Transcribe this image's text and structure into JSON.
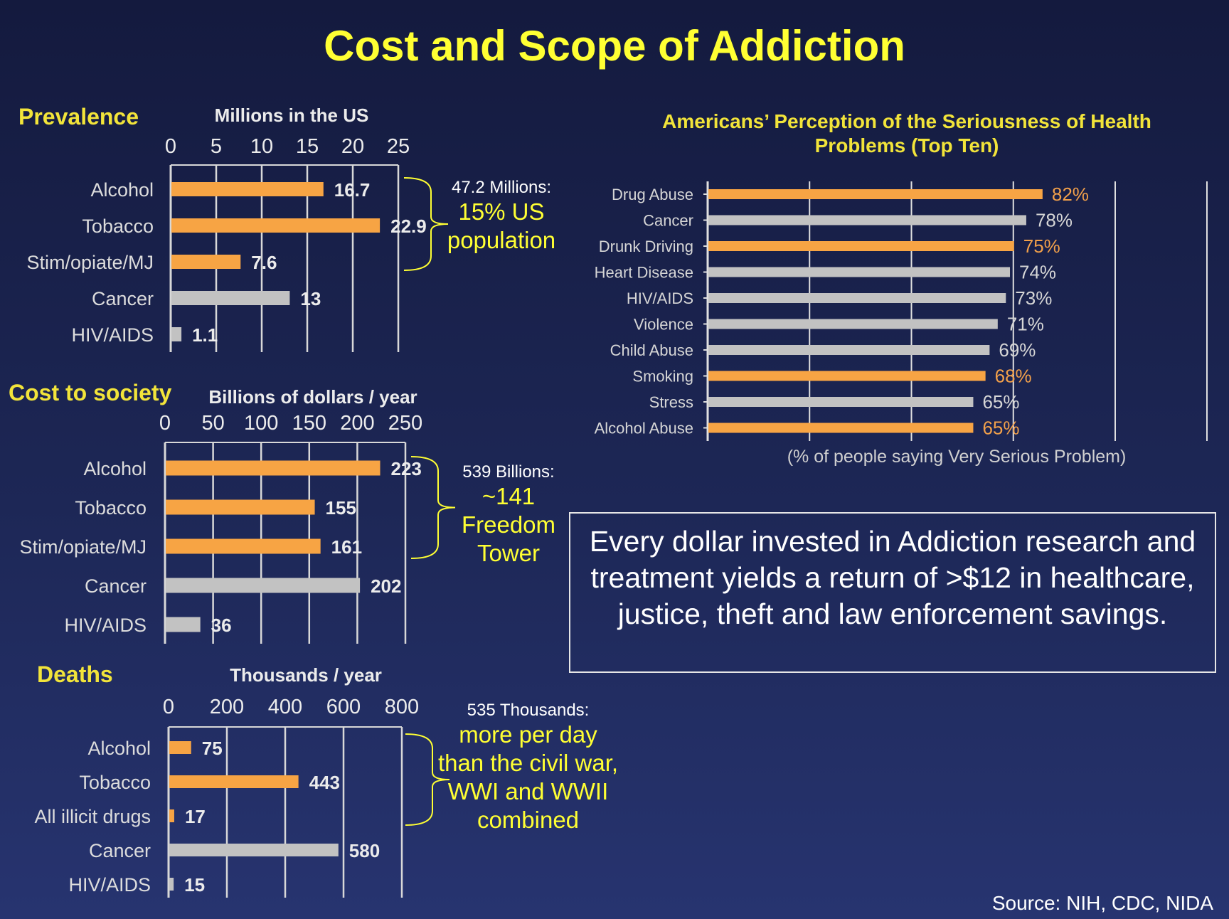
{
  "title": "Cost and Scope of Addiction",
  "colors": {
    "orange": "#f7a444",
    "gray": "#c2c2c2",
    "title": "#ffff33",
    "section": "#f2e43a"
  },
  "chart_data": [
    {
      "type": "bar",
      "section_title": "Prevalence",
      "unit_label": "Millions in the US",
      "ticks": [
        "0",
        "5",
        "10",
        "15",
        "20",
        "25"
      ],
      "xlim": [
        0,
        25
      ],
      "categories": [
        "Alcohol",
        "Tobacco",
        "Stim/opiate/MJ",
        "Cancer",
        "HIV/AIDS"
      ],
      "values": [
        16.7,
        22.9,
        7.6,
        13,
        1.1
      ],
      "labels": [
        "16.7",
        "22.9",
        "7.6",
        "13",
        "1.1"
      ],
      "colors": [
        "orange",
        "orange",
        "orange",
        "gray",
        "gray"
      ],
      "annotation": {
        "head": "47.2 Millions:",
        "body": [
          "15% US",
          "population"
        ]
      }
    },
    {
      "type": "bar",
      "section_title": "Cost to society",
      "unit_label": "Billions  of dollars / year",
      "ticks": [
        "0",
        "50",
        "100",
        "150",
        "200",
        "250"
      ],
      "xlim": [
        0,
        250
      ],
      "categories": [
        "Alcohol",
        "Tobacco",
        "Stim/opiate/MJ",
        "Cancer",
        "HIV/AIDS"
      ],
      "values": [
        223,
        155,
        161,
        202,
        36
      ],
      "labels": [
        "223",
        "155",
        "161",
        "202",
        "36"
      ],
      "colors": [
        "orange",
        "orange",
        "orange",
        "gray",
        "gray"
      ],
      "annotation": {
        "head": "539 Billions:",
        "body": [
          "~141",
          "Freedom",
          "Tower"
        ]
      }
    },
    {
      "type": "bar",
      "section_title": "Deaths",
      "unit_label": "Thousands / year",
      "ticks": [
        "0",
        "200",
        "400",
        "600",
        "800"
      ],
      "xlim": [
        0,
        800
      ],
      "categories": [
        "Alcohol",
        "Tobacco",
        "All illicit drugs",
        "Cancer",
        "HIV/AIDS"
      ],
      "values": [
        75,
        443,
        17,
        580,
        15
      ],
      "labels": [
        "75",
        "443",
        "17",
        "580",
        "15"
      ],
      "colors": [
        "orange",
        "orange",
        "orange",
        "gray",
        "gray"
      ],
      "annotation": {
        "head": "535 Thousands:",
        "body": [
          "more per day",
          "than the civil war,",
          "WWI and WWII",
          "combined"
        ]
      }
    },
    {
      "type": "bar",
      "title": "Americans’ Perception of the Seriousness of Health Problems (Top Ten)",
      "title_lines": [
        "Americans’ Perception of the Seriousness of Health",
        "Problems (Top Ten)"
      ],
      "xlabel": "(% of people saying Very Serious Problem)",
      "categories": [
        "Drug Abuse",
        "Cancer",
        "Drunk Driving",
        "Heart Disease",
        "HIV/AIDS",
        "Violence",
        "Child Abuse",
        "Smoking",
        "Stress",
        "Alcohol Abuse"
      ],
      "values": [
        82,
        78,
        75,
        74,
        73,
        71,
        69,
        68,
        65,
        65
      ],
      "labels": [
        "82%",
        "78%",
        "75%",
        "74%",
        "73%",
        "71%",
        "69%",
        "68%",
        "65%",
        "65%"
      ],
      "colors": [
        "orange",
        "gray",
        "orange",
        "gray",
        "gray",
        "gray",
        "gray",
        "orange",
        "gray",
        "orange"
      ],
      "grid": true
    }
  ],
  "callout": "Every dollar invested in Addiction research and treatment yields a return of >$12 in healthcare, justice, theft and law enforcement savings.",
  "source": "Source: NIH, CDC, NIDA"
}
